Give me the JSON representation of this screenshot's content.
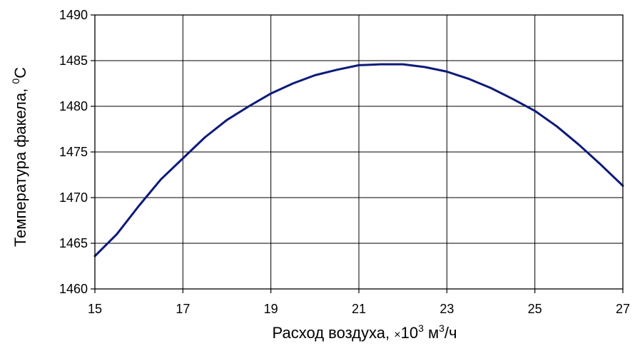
{
  "chart_data": {
    "type": "line",
    "xlabel": {
      "text": "Расход воздуха, ",
      "times": "×",
      "base": "10",
      "exp": "3",
      "unit_pre": " м",
      "unit_exp": "3",
      "unit_post": "/ч"
    },
    "ylabel": {
      "text": "Температура факела, ",
      "deg": "0",
      "unit": "С"
    },
    "xlim": [
      15,
      27
    ],
    "ylim": [
      1460,
      1490
    ],
    "xticks": [
      15,
      17,
      19,
      21,
      23,
      25,
      27
    ],
    "yticks": [
      1460,
      1465,
      1470,
      1475,
      1480,
      1485,
      1490
    ],
    "grid": true,
    "legend": "none",
    "series": [
      {
        "color": "#0d1a7a",
        "x": [
          15,
          15.5,
          16,
          16.5,
          17,
          17.5,
          18,
          18.5,
          19,
          19.5,
          20,
          20.5,
          21,
          21.5,
          22,
          22.5,
          23,
          23.5,
          24,
          24.5,
          25,
          25.5,
          26,
          26.5,
          27
        ],
        "y": [
          1463.6,
          1466.0,
          1469.1,
          1472.0,
          1474.3,
          1476.6,
          1478.5,
          1480.0,
          1481.4,
          1482.5,
          1483.4,
          1484.0,
          1484.5,
          1484.6,
          1484.6,
          1484.3,
          1483.8,
          1483.0,
          1482.0,
          1480.8,
          1479.5,
          1477.8,
          1475.8,
          1473.6,
          1471.3
        ]
      }
    ],
    "colors": {
      "line": "#0d1a7a",
      "grid": "#000000",
      "axis": "#000000"
    }
  }
}
